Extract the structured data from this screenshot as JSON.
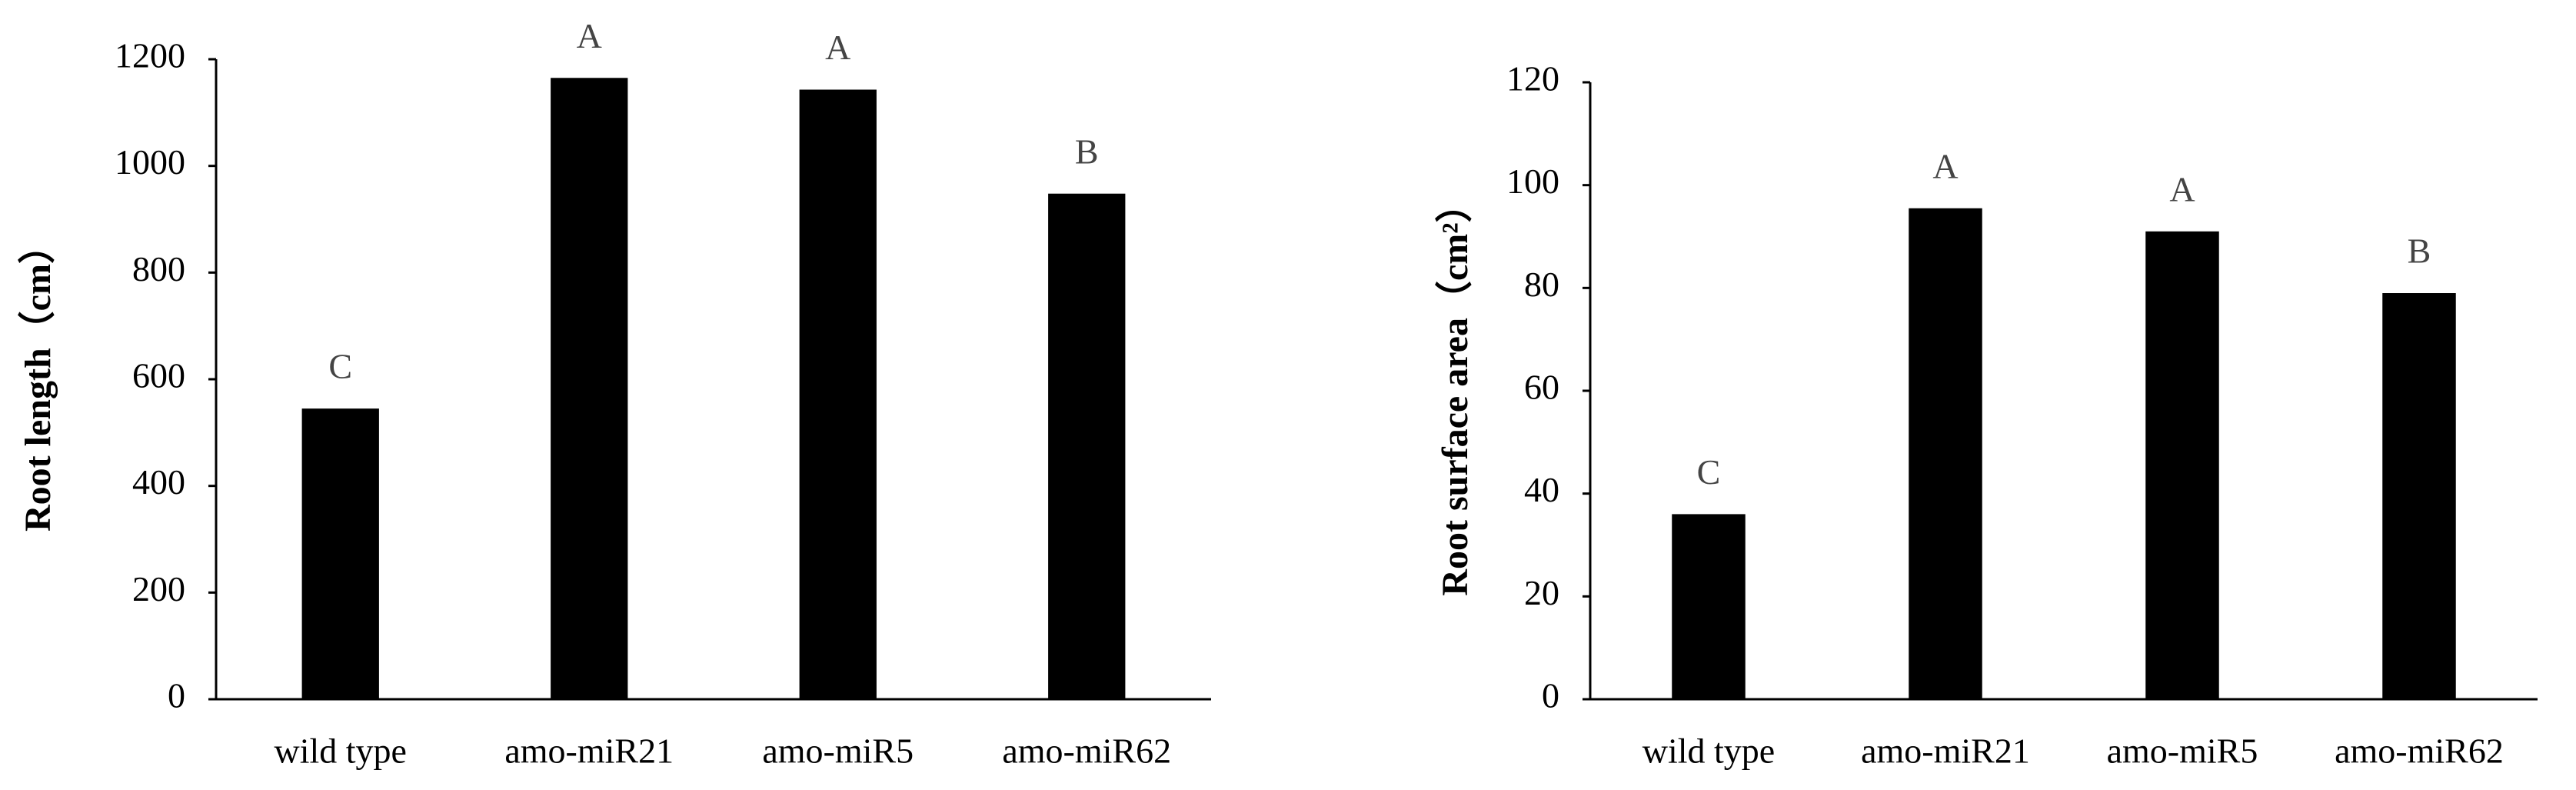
{
  "chart_data": [
    {
      "type": "bar",
      "y_label": "Root length（cm）",
      "categories": [
        "wild type",
        "amo-miR21",
        "amo-miR5",
        "amo-miR62"
      ],
      "values": [
        545,
        1165,
        1143,
        948
      ],
      "annotations": [
        "C",
        "A",
        "A",
        "B"
      ],
      "color": "#000000",
      "ylim": [
        0,
        1200
      ],
      "yticks": [
        0,
        200,
        400,
        600,
        800,
        1000,
        1200
      ],
      "grid": false
    },
    {
      "type": "bar",
      "y_label": "Root surface area（cm²）",
      "categories": [
        "wild type",
        "amo-miR21",
        "amo-miR5",
        "amo-miR62"
      ],
      "values": [
        36,
        95.5,
        91,
        79
      ],
      "annotations": [
        "C",
        "A",
        "A",
        "B"
      ],
      "color": "#000000",
      "ylim": [
        0,
        120
      ],
      "yticks": [
        0,
        20,
        40,
        60,
        80,
        100,
        120
      ],
      "grid": false
    }
  ]
}
